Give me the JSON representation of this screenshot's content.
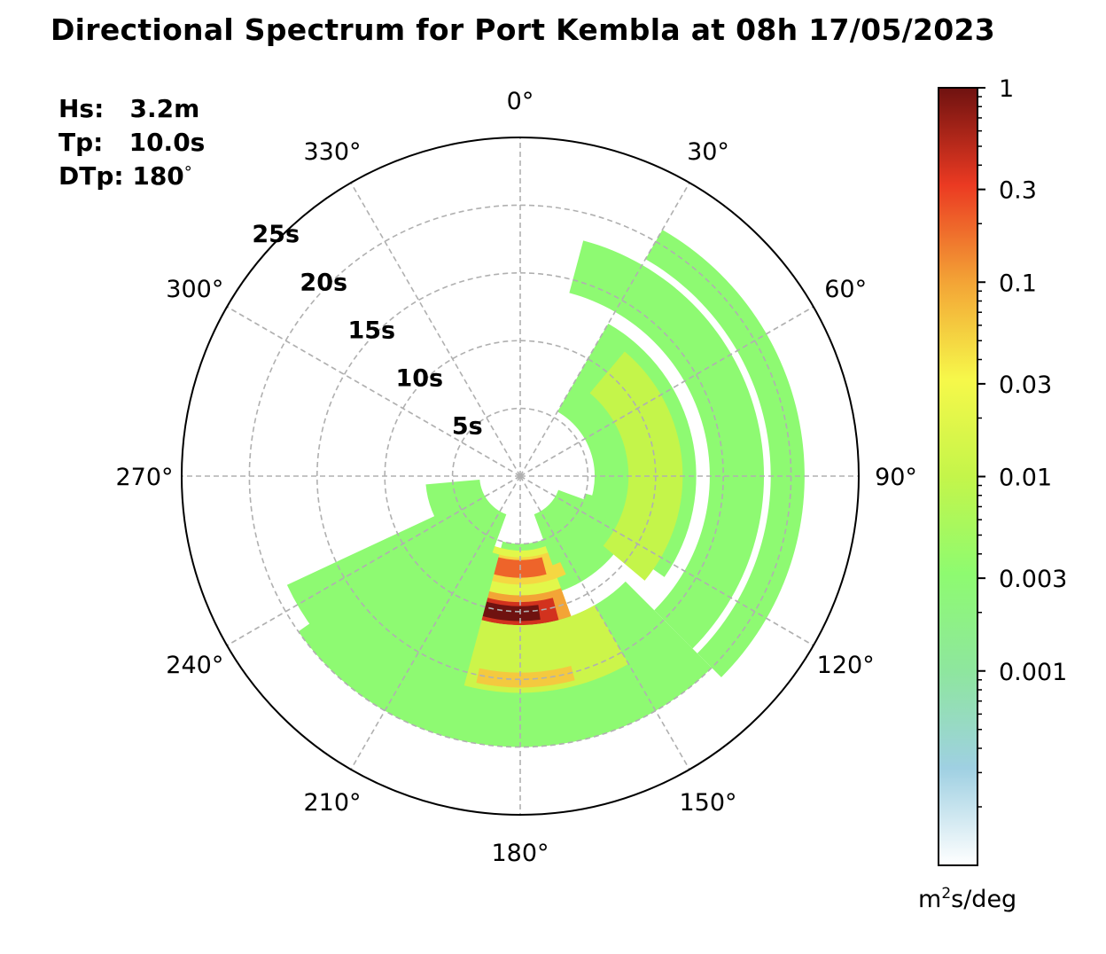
{
  "title": "Directional Spectrum for Port Kembla at 08h 17/05/2023",
  "stats": {
    "hs_label": "Hs:",
    "hs_value": "3.2m",
    "tp_label": "Tp:",
    "tp_value": "10.0s",
    "dtp_label": "DTp:",
    "dtp_value": "180",
    "dtp_unit": "°"
  },
  "colorbar": {
    "unit_base": "m",
    "unit_exp": "2",
    "unit_rest": "s/deg",
    "ticks": [
      {
        "value": 1,
        "label": "1"
      },
      {
        "value": 0.3,
        "label": "0.3"
      },
      {
        "value": 0.1,
        "label": "0.1"
      },
      {
        "value": 0.03,
        "label": "0.03"
      },
      {
        "value": 0.01,
        "label": "0.01"
      },
      {
        "value": 0.003,
        "label": "0.003"
      },
      {
        "value": 0.001,
        "label": "0.001"
      }
    ],
    "range": [
      0.0001,
      1
    ],
    "scale": "log",
    "colors": [
      "#ffffff",
      "#9fd0e2",
      "#8ee69e",
      "#8efb70",
      "#c4f54a",
      "#f6f84a",
      "#f3a436",
      "#eb3a22",
      "#6f1210"
    ]
  },
  "chart_data": {
    "type": "heatmap",
    "projection": "polar",
    "theta_zero": "N",
    "theta_direction": "clockwise",
    "angle_ticks": [
      "0°",
      "30°",
      "60°",
      "90°",
      "120°",
      "150°",
      "180°",
      "210°",
      "240°",
      "270°",
      "300°",
      "330°"
    ],
    "radial_ticks": [
      "5s",
      "10s",
      "15s",
      "20s",
      "25s"
    ],
    "radial_values": [
      5,
      10,
      15,
      20,
      25
    ],
    "rmax": 25,
    "cells": [
      {
        "dir_from": 105,
        "dir_to": 195,
        "period_from": 5,
        "period_to": 9,
        "value": 0.003
      },
      {
        "dir_from": 160,
        "dir_to": 205,
        "period_from": 5.5,
        "period_to": 10.5,
        "value": 0.02
      },
      {
        "dir_from": 155,
        "dir_to": 210,
        "period_from": 6,
        "period_to": 8,
        "value": 0.05
      },
      {
        "dir_from": 165,
        "dir_to": 203,
        "period_from": 6.2,
        "period_to": 7.5,
        "value": 0.2
      },
      {
        "dir_from": 160,
        "dir_to": 210,
        "period_from": 8.8,
        "period_to": 11.5,
        "value": 0.1
      },
      {
        "dir_from": 165,
        "dir_to": 205,
        "period_from": 9.3,
        "period_to": 11,
        "value": 0.4
      },
      {
        "dir_from": 172,
        "dir_to": 198,
        "period_from": 9.6,
        "period_to": 10.7,
        "value": 1
      },
      {
        "dir_from": 135,
        "dir_to": 235,
        "period_from": 11,
        "period_to": 20,
        "value": 0.003
      },
      {
        "dir_from": 150,
        "dir_to": 215,
        "period_from": 11,
        "period_to": 16,
        "value": 0.012
      },
      {
        "dir_from": 165,
        "dir_to": 192,
        "period_from": 14.5,
        "period_to": 15.6,
        "value": 0.06
      },
      {
        "dir_from": 30,
        "dir_to": 125,
        "period_from": 5.5,
        "period_to": 13,
        "value": 0.003
      },
      {
        "dir_from": 40,
        "dir_to": 130,
        "period_from": 8,
        "period_to": 12,
        "value": 0.01
      },
      {
        "dir_from": 15,
        "dir_to": 135,
        "period_from": 14,
        "period_to": 18,
        "value": 0.003
      },
      {
        "dir_from": 30,
        "dir_to": 135,
        "period_from": 18.5,
        "period_to": 21,
        "value": 0.003
      },
      {
        "dir_from": 195,
        "dir_to": 245,
        "period_from": 6,
        "period_to": 19,
        "value": 0.003
      },
      {
        "dir_from": 200,
        "dir_to": 265,
        "period_from": 3,
        "period_to": 7,
        "value": 0.003
      },
      {
        "dir_from": 110,
        "dir_to": 160,
        "period_from": 3,
        "period_to": 7,
        "value": 0.003
      }
    ]
  }
}
